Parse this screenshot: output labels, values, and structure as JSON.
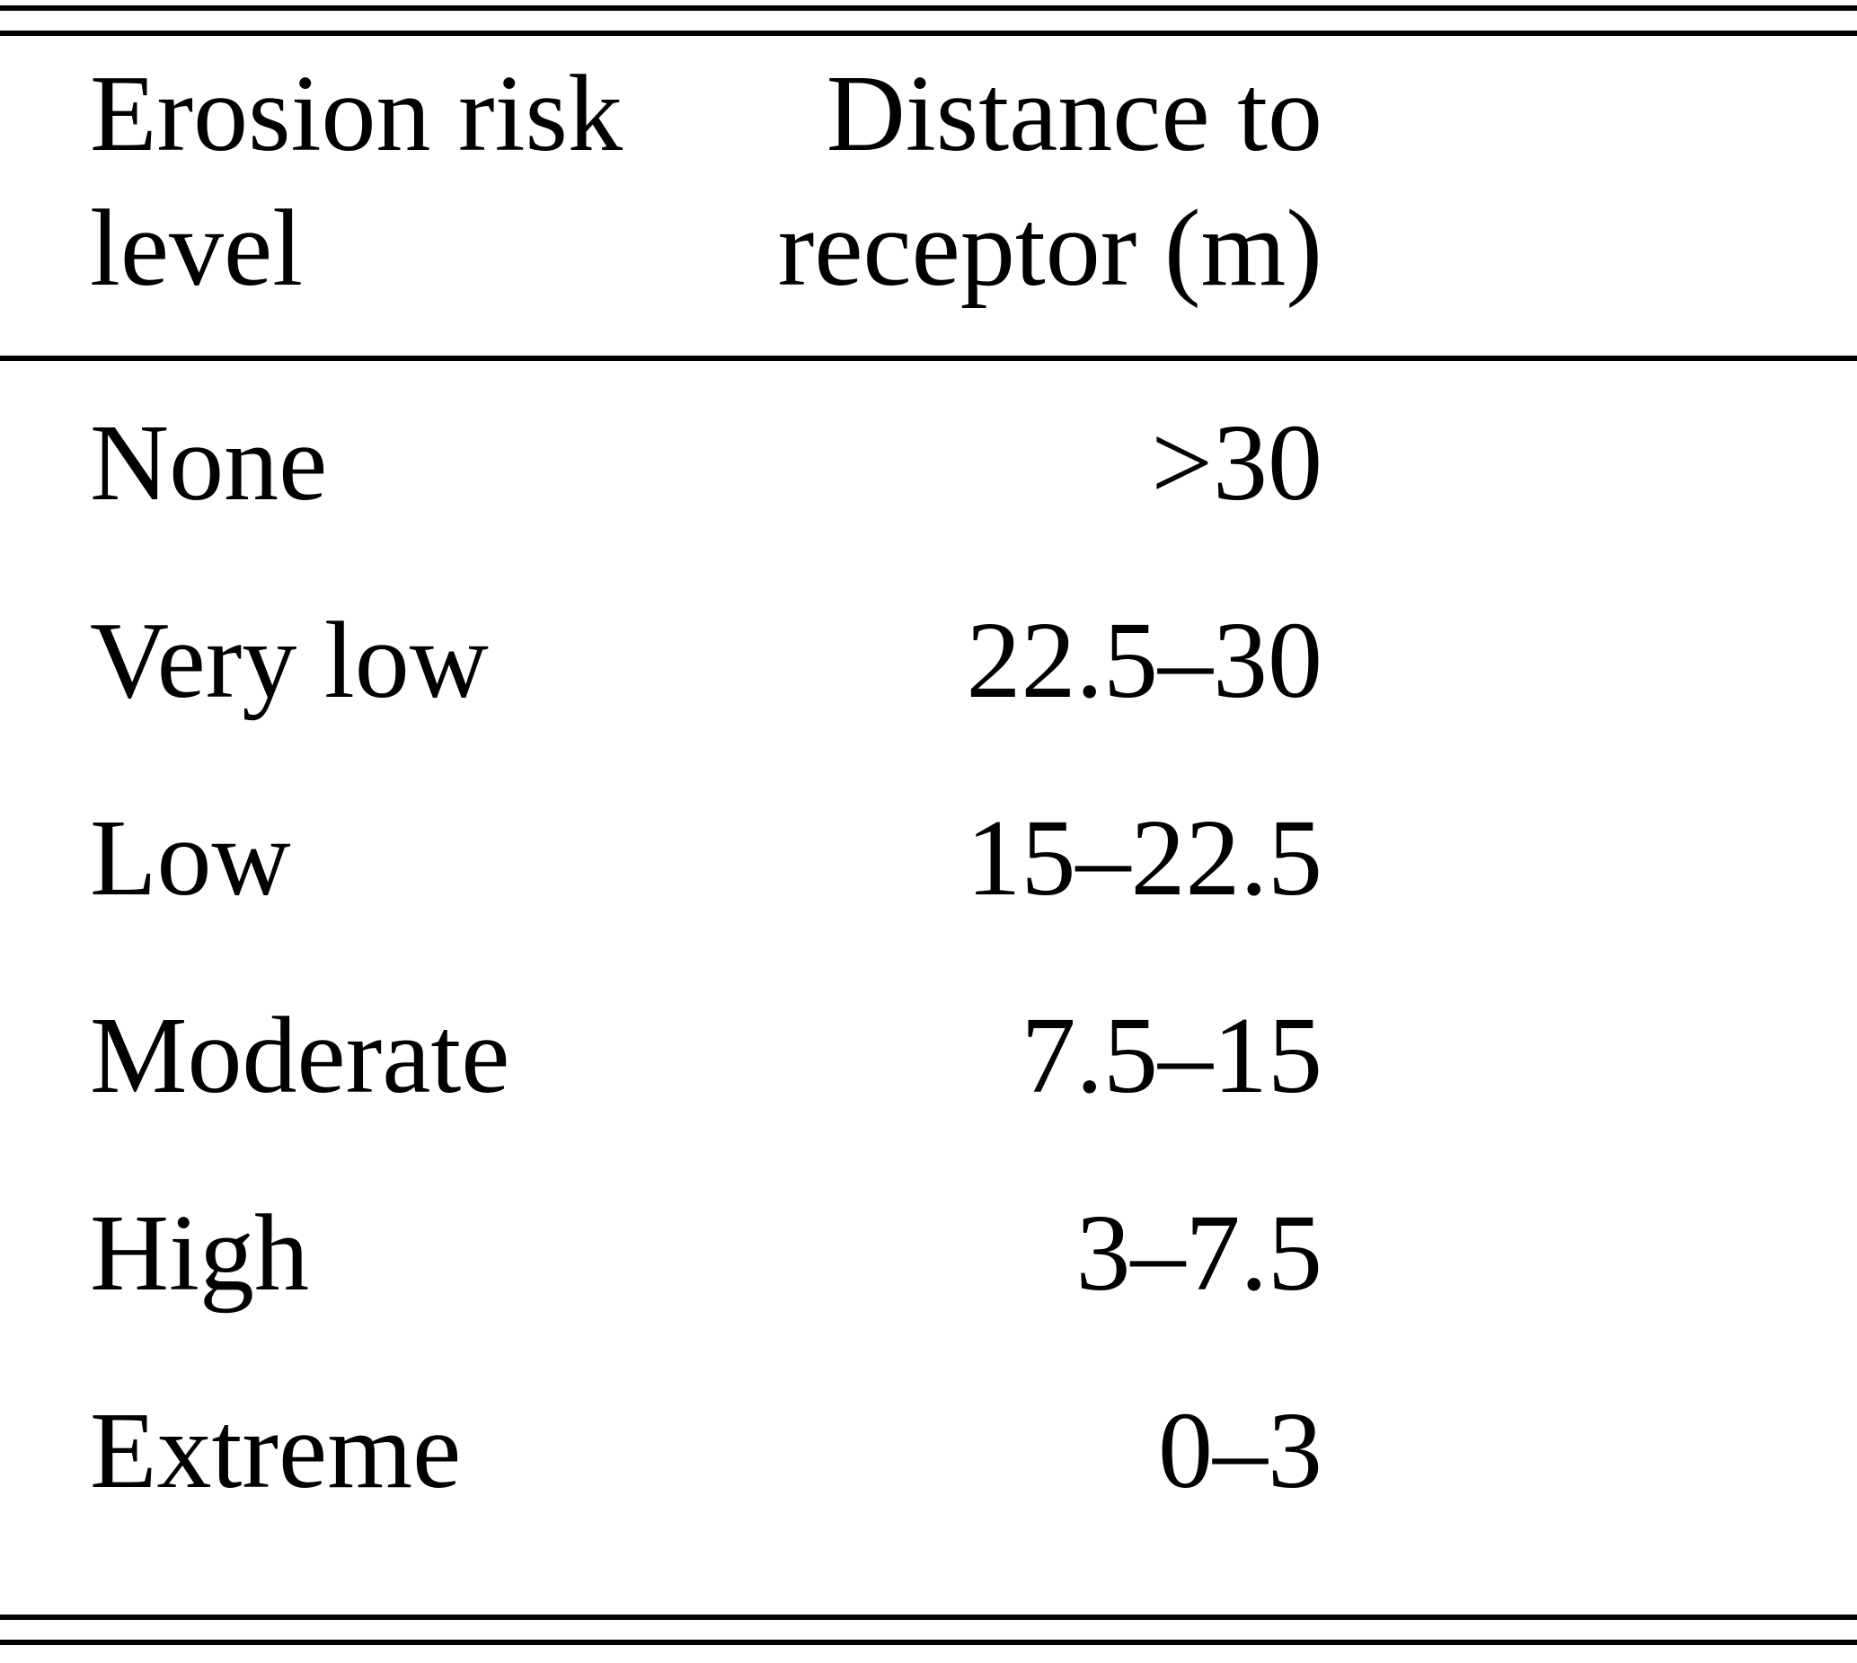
{
  "table": {
    "headers": [
      "Erosion risk level",
      "Distance to receptor (m)"
    ],
    "rows": [
      {
        "level": "None",
        "distance": ">30"
      },
      {
        "level": "Very low",
        "distance": "22.5–30"
      },
      {
        "level": "Low",
        "distance": "15–22.5"
      },
      {
        "level": "Moderate",
        "distance": "7.5–15"
      },
      {
        "level": "High",
        "distance": "3–7.5"
      },
      {
        "level": "Extreme",
        "distance": "0–3"
      }
    ]
  },
  "chart_data": {
    "type": "table",
    "title": "",
    "columns": [
      "Erosion risk level",
      "Distance to receptor (m)"
    ],
    "rows": [
      [
        "None",
        ">30"
      ],
      [
        "Very low",
        "22.5–30"
      ],
      [
        "Low",
        "15–22.5"
      ],
      [
        "Moderate",
        "7.5–15"
      ],
      [
        "High",
        "3–7.5"
      ],
      [
        "Extreme",
        "0–3"
      ]
    ]
  },
  "colors": {
    "text": "#000000",
    "background": "#ffffff",
    "rule": "#000000"
  }
}
